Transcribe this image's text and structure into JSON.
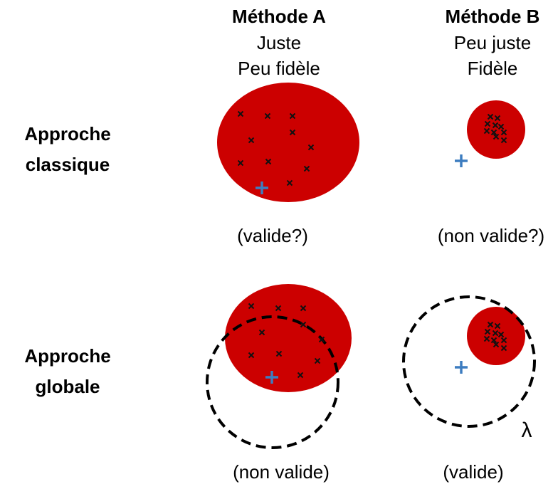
{
  "columns": [
    {
      "title": "Méthode A",
      "lines": [
        "Juste",
        "Peu fidèle"
      ]
    },
    {
      "title": "Méthode B",
      "lines": [
        "Peu juste",
        "Fidèle"
      ]
    }
  ],
  "rows": [
    {
      "label": [
        "Approche",
        "classique"
      ],
      "verdicts": [
        "(valide?)",
        "(non valide?)"
      ]
    },
    {
      "label": [
        "Approche",
        "globale"
      ],
      "verdicts": [
        "(non valide)",
        "(valide)"
      ]
    }
  ],
  "lambda": "λ"
}
